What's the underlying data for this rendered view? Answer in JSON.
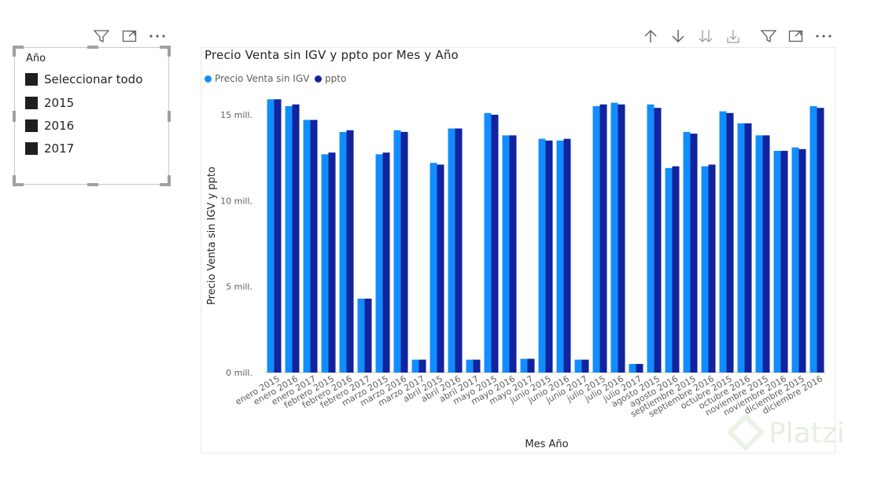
{
  "slicer": {
    "title": "Año",
    "items": [
      "Seleccionar todo",
      "2015",
      "2016",
      "2017"
    ]
  },
  "chart": {
    "title": "Precio Venta sin IGV y ppto por Mes y Año",
    "legend": [
      {
        "name": "Precio Venta sin IGV",
        "color": "#118DFF"
      },
      {
        "name": "ppto",
        "color": "#12239E"
      }
    ]
  },
  "watermark": {
    "text": "Platzi"
  },
  "chart_data": {
    "type": "bar",
    "title": "Precio Venta sin IGV y ppto por Mes y Año",
    "xlabel": "Mes Año",
    "ylabel": "Precio Venta sin IGV y ppto",
    "ylim": [
      0,
      16000000
    ],
    "yticks": [
      0,
      5000000,
      10000000,
      15000000
    ],
    "ytick_labels": [
      "0 mill.",
      "5 mill.",
      "10 mill.",
      "15 mill."
    ],
    "grid": false,
    "legend_position": "top-left",
    "categories": [
      "enero 2015",
      "enero 2016",
      "enero 2017",
      "febrero 2015",
      "febrero 2016",
      "febrero 2017",
      "marzo 2015",
      "marzo 2016",
      "marzo 2017",
      "abril 2015",
      "abril 2016",
      "abril 2017",
      "mayo 2015",
      "mayo 2016",
      "mayo 2017",
      "junio 2015",
      "junio 2016",
      "junio 2017",
      "julio 2015",
      "julio 2016",
      "julio 2017",
      "agosto 2015",
      "agosto 2016",
      "septiembre 2015",
      "septiembre 2016",
      "octubre 2015",
      "octubre 2016",
      "noviembre 2015",
      "noviembre 2016",
      "diciembre 2015",
      "diciembre 2016"
    ],
    "series": [
      {
        "name": "Precio Venta sin IGV",
        "color": "#118DFF",
        "values": [
          15.9,
          15.5,
          14.7,
          12.7,
          14.0,
          4.3,
          12.7,
          14.1,
          0.75,
          12.2,
          14.2,
          0.75,
          15.1,
          13.8,
          0.8,
          13.6,
          13.5,
          0.75,
          15.5,
          15.7,
          0.5,
          15.6,
          11.9,
          14.0,
          12.0,
          15.2,
          14.5,
          13.8,
          12.9,
          13.1,
          15.5
        ]
      },
      {
        "name": "ppto",
        "color": "#12239E",
        "values": [
          15.9,
          15.6,
          14.7,
          12.8,
          14.1,
          4.3,
          12.8,
          14.0,
          0.75,
          12.1,
          14.2,
          0.75,
          15.0,
          13.8,
          0.8,
          13.5,
          13.6,
          0.75,
          15.6,
          15.6,
          0.5,
          15.4,
          12.0,
          13.9,
          12.1,
          15.1,
          14.5,
          13.8,
          12.9,
          13.0,
          15.4
        ]
      }
    ],
    "value_unit": "mill."
  }
}
